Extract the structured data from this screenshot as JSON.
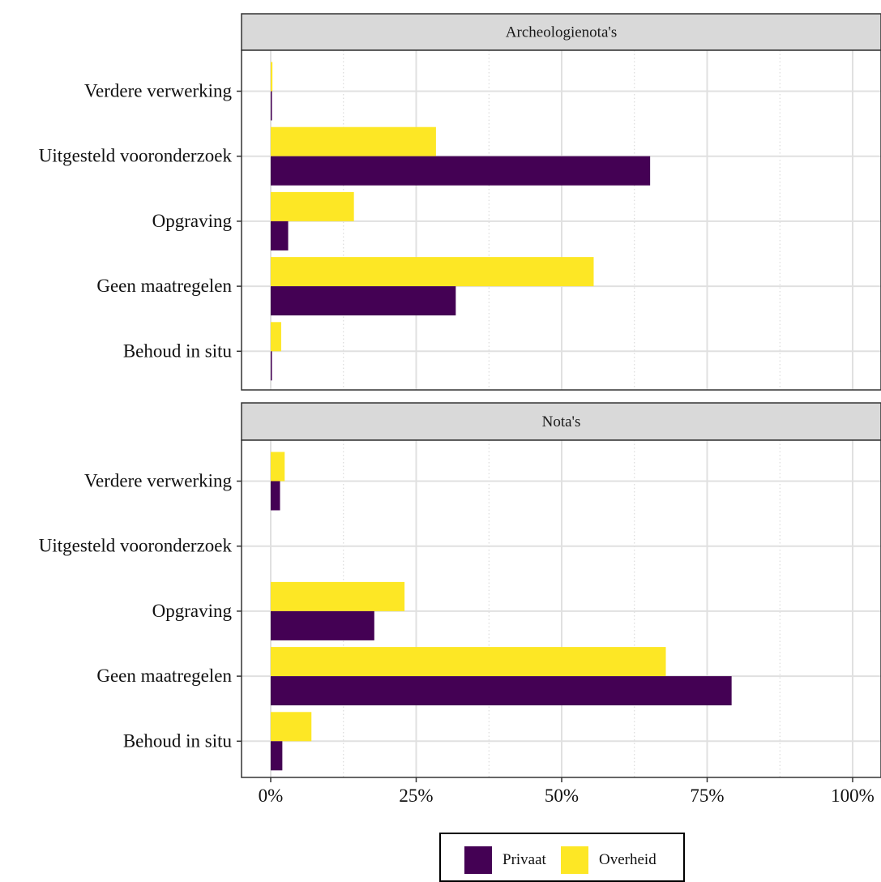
{
  "chart_data": {
    "type": "bar",
    "orientation": "horizontal",
    "categories": [
      "Verdere verwerking",
      "Uitgesteld vooronderzoek",
      "Opgraving",
      "Geen maatregelen",
      "Behoud in situ"
    ],
    "x_ticks": [
      "0%",
      "25%",
      "50%",
      "75%",
      "100%"
    ],
    "x_range": [
      0,
      100
    ],
    "grid": true,
    "legend_position": "bottom",
    "colors": {
      "Privaat": "#440154",
      "Overheid": "#FDE725"
    },
    "panels": [
      {
        "title": "Archeologienota's",
        "series": [
          {
            "name": "Privaat",
            "values": [
              0.1,
              65.2,
              3.0,
              31.8,
              0.1
            ]
          },
          {
            "name": "Overheid",
            "values": [
              0.3,
              28.4,
              14.3,
              55.5,
              1.8
            ]
          }
        ]
      },
      {
        "title": "Nota's",
        "series": [
          {
            "name": "Privaat",
            "values": [
              1.6,
              0,
              17.8,
              79.2,
              2.0
            ]
          },
          {
            "name": "Overheid",
            "values": [
              2.4,
              0,
              23.0,
              67.9,
              7.0
            ]
          }
        ]
      }
    ]
  },
  "legend": {
    "items": [
      {
        "label": "Privaat",
        "color": "#440154"
      },
      {
        "label": "Overheid",
        "color": "#FDE725"
      }
    ]
  }
}
